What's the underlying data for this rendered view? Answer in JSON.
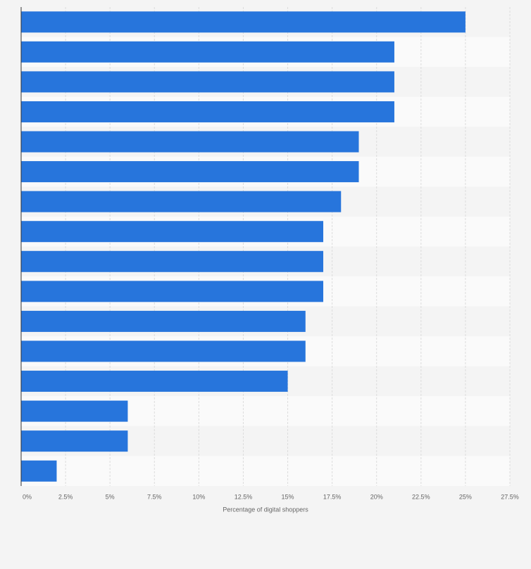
{
  "chart_data": {
    "type": "bar",
    "orientation": "horizontal",
    "x_label": "Percentage of digital shoppers",
    "categories": [
      null,
      null,
      null,
      null,
      null,
      null,
      null,
      null,
      null,
      null,
      null,
      null,
      null,
      null,
      null,
      null
    ],
    "values": [
      25,
      21,
      21,
      21,
      19,
      19,
      18,
      17,
      17,
      17,
      16,
      16,
      15,
      6,
      6,
      2
    ],
    "color": "#2775dc",
    "xlim": [
      0,
      27.5
    ],
    "xticks": [
      {
        "value": 0,
        "label": "0%"
      },
      {
        "value": 2.5,
        "label": "2.5%"
      },
      {
        "value": 5,
        "label": "5%"
      },
      {
        "value": 7.5,
        "label": "7.5%"
      },
      {
        "value": 10,
        "label": "10%"
      },
      {
        "value": 12.5,
        "label": "12.5%"
      },
      {
        "value": 15,
        "label": "15%"
      },
      {
        "value": 17.5,
        "label": "17.5%"
      },
      {
        "value": 20,
        "label": "20%"
      },
      {
        "value": 22.5,
        "label": "22.5%"
      },
      {
        "value": 25,
        "label": "25%"
      },
      {
        "value": 27.5,
        "label": "27.5%"
      }
    ],
    "grid": true
  }
}
